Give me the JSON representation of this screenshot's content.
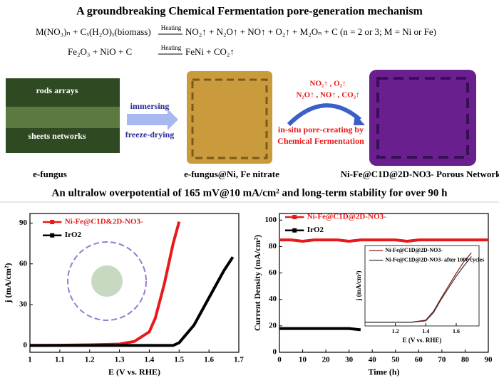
{
  "header": {
    "title": "A groundbreaking Chemical Fermentation pore-generation mechanism",
    "equations": [
      {
        "left": "M(NO₃)ₙ + Cₓ(H₂O)ᵧ(biomass)",
        "condition": "Heating",
        "right": "NO₂↑ + N₂O↑ + NO↑ + O₂↑ + M₂Oₙ + C (n = 2 or 3; M = Ni or Fe)"
      },
      {
        "left": "Fe₂O₃ + NiO  + C",
        "condition": "Heating",
        "right": "FeNi + CO₂↑"
      }
    ]
  },
  "scheme": {
    "photo_labels": [
      "rods arrays",
      "sheets networks"
    ],
    "step1": [
      "immersing",
      "freeze-drying"
    ],
    "gases": [
      "NO₂↑ , O₂↑",
      "N₂O↑ , NO↑ , CO₂↑"
    ],
    "step2": [
      "in-situ pore-creating by",
      "Chemical Fermentation"
    ],
    "captions": [
      "e-fungus",
      "e-fungus@Ni, Fe nitrate",
      "Ni-Fe@C1D@2D-NO3- Porous Network"
    ],
    "subtitle": "An ultralow overpotential of 165 mV@10 mA/cm² and long-term stability for over 90 h"
  },
  "chart_data": [
    {
      "type": "line",
      "xlabel": "E (V vs. RHE)",
      "ylabel": "j (mA/cm²)",
      "x": [
        1.0,
        1.1,
        1.2,
        1.3,
        1.35,
        1.4,
        1.42,
        1.45,
        1.48,
        1.5,
        1.55,
        1.6,
        1.65,
        1.68
      ],
      "series": [
        {
          "name": "Ni-Fe@C1D&2D-NO3-",
          "color": "#e8191a",
          "values": [
            0,
            0.2,
            0.5,
            1,
            3,
            10,
            20,
            45,
            75,
            91,
            null,
            null,
            null,
            null
          ]
        },
        {
          "name": "IrO2",
          "color": "#000000",
          "values": [
            0,
            0,
            0,
            0,
            0,
            0,
            0,
            0,
            0,
            2,
            15,
            35,
            55,
            65
          ]
        }
      ],
      "xlim": [
        1.0,
        1.7
      ],
      "xticks": [
        1.0,
        1.1,
        1.2,
        1.3,
        1.4,
        1.5,
        1.6,
        1.7
      ],
      "ylim": [
        -5,
        97
      ],
      "yticks": [
        0,
        30,
        60,
        90
      ]
    },
    {
      "type": "line",
      "xlabel": "Time (h)",
      "ylabel": "Current Density (mA/cm²)",
      "x": [
        0,
        5,
        10,
        15,
        20,
        25,
        30,
        35,
        40,
        45,
        50,
        55,
        60,
        65,
        70,
        75,
        80,
        85,
        90
      ],
      "series": [
        {
          "name": "Ni-Fe@C1D@2D-NO3-",
          "color": "#e8191a",
          "values": [
            85,
            85,
            84,
            85,
            85,
            85,
            84,
            85,
            85,
            85,
            85,
            84,
            85,
            85,
            85,
            85,
            85,
            85,
            85
          ]
        },
        {
          "name": "IrO2",
          "color": "#000000",
          "values": [
            18,
            18,
            18,
            18,
            18,
            18,
            18,
            17,
            null,
            null,
            null,
            null,
            null,
            null,
            null,
            null,
            null,
            null,
            null
          ]
        }
      ],
      "xlim": [
        0,
        90
      ],
      "xticks": [
        0,
        10,
        20,
        30,
        40,
        50,
        60,
        70,
        80,
        90
      ],
      "ylim": [
        0,
        105
      ],
      "yticks": [
        0,
        20,
        40,
        60,
        80,
        100
      ]
    },
    {
      "type": "line",
      "xlabel": "E (V vs. RHE)",
      "ylabel": "j (mA/cm²)",
      "x": [
        1.0,
        1.1,
        1.2,
        1.3,
        1.4,
        1.45,
        1.5,
        1.55,
        1.6,
        1.65,
        1.7
      ],
      "series": [
        {
          "name": "Ni-Fe@C1D@2D-NO3-",
          "color": "#8b1a1a",
          "values": [
            5,
            5,
            5,
            5,
            8,
            20,
            38,
            55,
            72,
            88,
            100
          ]
        },
        {
          "name": "Ni-Fe@C1D@2D-NO3- after 1000 cycles",
          "color": "#333333",
          "values": [
            5,
            5,
            5,
            5,
            7,
            18,
            36,
            52,
            68,
            82,
            95
          ]
        }
      ],
      "xlim": [
        1.0,
        1.75
      ],
      "xticks": [
        1.2,
        1.4,
        1.6
      ],
      "ylim": [
        0,
        110
      ],
      "yticks": []
    }
  ]
}
